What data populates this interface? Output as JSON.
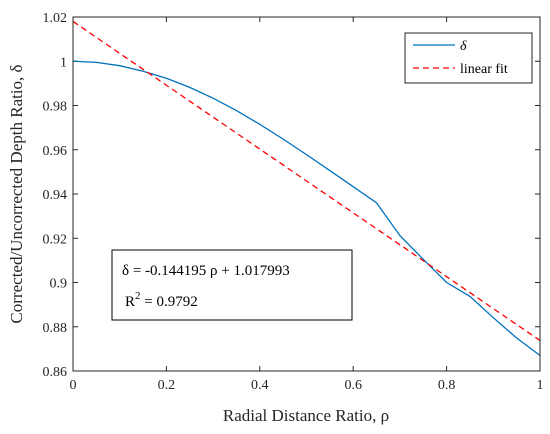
{
  "chart_data": {
    "type": "line",
    "xlabel": "Radial Distance Ratio, ρ",
    "ylabel": "Corrected/Uncorrected Depth Ratio, δ",
    "xlim": [
      0,
      1
    ],
    "ylim": [
      0.86,
      1.02
    ],
    "x_ticks": [
      0,
      0.2,
      0.4,
      0.6,
      0.8,
      1
    ],
    "x_tick_labels": [
      "0",
      "0.2",
      "0.4",
      "0.6",
      "0.8",
      "1"
    ],
    "y_ticks": [
      0.86,
      0.88,
      0.9,
      0.92,
      0.94,
      0.96,
      0.98,
      1,
      1.02
    ],
    "y_tick_labels": [
      "0.86",
      "0.88",
      "0.9",
      "0.92",
      "0.94",
      "0.96",
      "0.98",
      "1",
      "1.02"
    ],
    "grid": false,
    "legend_position": "top-right",
    "series": [
      {
        "name": "δ",
        "color": "#0072BD",
        "style": "solid",
        "x": [
          0,
          0.05,
          0.1,
          0.15,
          0.2,
          0.25,
          0.3,
          0.35,
          0.4,
          0.45,
          0.5,
          0.55,
          0.6,
          0.65,
          0.7,
          0.75,
          0.8,
          0.85,
          0.9,
          0.95,
          1
        ],
        "y": [
          1.0,
          0.9995,
          0.998,
          0.9955,
          0.9923,
          0.9882,
          0.9833,
          0.9777,
          0.9715,
          0.9648,
          0.9578,
          0.9506,
          0.9433,
          0.936,
          0.9212,
          0.9105,
          0.9,
          0.8937,
          0.8841,
          0.8749,
          0.867
        ]
      },
      {
        "name": "linear fit",
        "color": "#FF0000",
        "style": "dashed",
        "x": [
          0,
          1
        ],
        "y": [
          1.017993,
          0.873798
        ]
      }
    ],
    "annotation": {
      "equation": "δ = -0.144195 ρ + 1.017993",
      "r2_prefix": "R",
      "r2_sup": "2",
      "r2_value": " = 0.9792"
    }
  }
}
